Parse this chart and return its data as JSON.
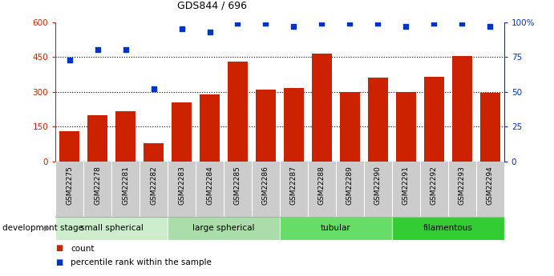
{
  "title": "GDS844 / 696",
  "samples": [
    "GSM22275",
    "GSM22278",
    "GSM22281",
    "GSM22282",
    "GSM22283",
    "GSM22284",
    "GSM22285",
    "GSM22286",
    "GSM22287",
    "GSM22288",
    "GSM22289",
    "GSM22290",
    "GSM22291",
    "GSM22292",
    "GSM22293",
    "GSM22294"
  ],
  "counts": [
    130,
    200,
    215,
    80,
    255,
    290,
    430,
    310,
    315,
    465,
    300,
    360,
    300,
    365,
    455,
    295
  ],
  "percentiles": [
    73,
    80,
    80,
    52,
    95,
    93,
    99,
    99,
    97,
    99,
    99,
    99,
    97,
    99,
    99,
    97
  ],
  "ylim_left": [
    0,
    600
  ],
  "ylim_right": [
    0,
    100
  ],
  "yticks_left": [
    0,
    150,
    300,
    450,
    600
  ],
  "yticks_right": [
    0,
    25,
    50,
    75,
    100
  ],
  "bar_color": "#cc2200",
  "dot_color": "#0033cc",
  "groups": [
    {
      "label": "small spherical",
      "start": 0,
      "end": 4,
      "color": "#cceecc"
    },
    {
      "label": "large spherical",
      "start": 4,
      "end": 8,
      "color": "#aaddaa"
    },
    {
      "label": "tubular",
      "start": 8,
      "end": 12,
      "color": "#66dd66"
    },
    {
      "label": "filamentous",
      "start": 12,
      "end": 16,
      "color": "#33cc33"
    }
  ],
  "legend_count_color": "#cc2200",
  "legend_dot_color": "#0033cc",
  "xlabel_dev": "development stage",
  "legend_count_label": "count",
  "legend_dot_label": "percentile rank within the sample",
  "tick_bg_color": "#cccccc",
  "grid_line_color": "black",
  "spine_color": "#888888"
}
